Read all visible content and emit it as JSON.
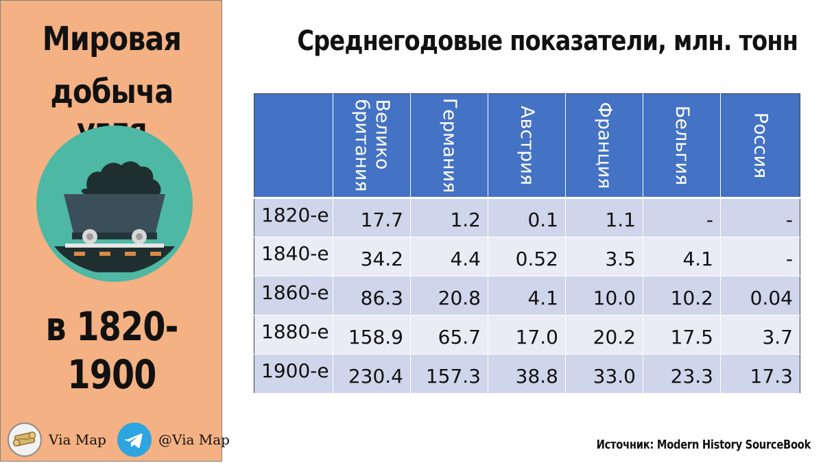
{
  "sidebar": {
    "title_line1": "Мировая",
    "title_line2": "добыча угля",
    "range": "в 1820-1900",
    "social": {
      "left_label": "Via Map",
      "right_label": "@Via Map",
      "left_icon": "scroll-icon",
      "right_icon": "telegram-icon"
    },
    "colors": {
      "panel": "#f4b183",
      "circle": "#4db8a4",
      "coal": "#1f2f2f",
      "cart": "#3b4f5a",
      "telegram": "#2ca5e0"
    }
  },
  "main": {
    "title": "Среднегодовые показатели, млн. тонн",
    "source": "Источник: Modern History SourceBook"
  },
  "chart_data": {
    "type": "table",
    "title": "Среднегодовые показатели, млн. тонн",
    "columns": [
      "",
      "Велико британия",
      "Германия",
      "Австрия",
      "Франция",
      "Бельгия",
      "Россия"
    ],
    "rows": [
      [
        "1820-е",
        "17.7",
        "1.2",
        "0.1",
        "1.1",
        "-",
        "-"
      ],
      [
        "1840-е",
        "34.2",
        "4.4",
        "0.52",
        "3.5",
        "4.1",
        "-"
      ],
      [
        "1860-е",
        "86.3",
        "20.8",
        "4.1",
        "10.0",
        "10.2",
        "0.04"
      ],
      [
        "1880-е",
        "158.9",
        "65.7",
        "17.0",
        "20.2",
        "17.5",
        "3.7"
      ],
      [
        "1900-е",
        "230.4",
        "157.3",
        "38.8",
        "33.0",
        "23.3",
        "17.3"
      ]
    ],
    "header_color": "#4472c4",
    "row_colors": [
      "#cfd5ea",
      "#e9ebf5"
    ]
  }
}
